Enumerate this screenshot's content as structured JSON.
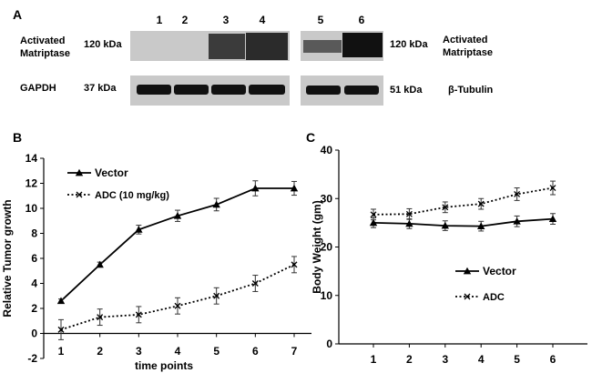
{
  "panel_a": {
    "label": "A",
    "lane_numbers": [
      "1",
      "2",
      "3",
      "4",
      "5",
      "6"
    ],
    "row1_label_left": [
      "Activated",
      "Matriptase"
    ],
    "row1_kda_left": "120 kDa",
    "row1_kda_right": "120 kDa",
    "row1_label_right": [
      "Activated",
      "Matriptase"
    ],
    "row2_label_left": "GAPDH",
    "row2_kda_left": "37 kDa",
    "row2_kda_right": "51 kDa",
    "row2_label_right": "β-Tubulin",
    "colors": {
      "blot_bg": "#c6c6c6",
      "band": "#111111"
    }
  },
  "chart_data": [
    {
      "panel": "B",
      "type": "line",
      "title": "",
      "xlabel": "time points",
      "ylabel": "Relative Tumor growth",
      "x": [
        1,
        2,
        3,
        4,
        5,
        6,
        7
      ],
      "x_ticks": [
        "1",
        "2",
        "3",
        "4",
        "5",
        "6",
        "7"
      ],
      "ylim": [
        -2,
        14
      ],
      "y_ticks": [
        "-2",
        "0",
        "2",
        "4",
        "6",
        "8",
        "10",
        "12",
        "14"
      ],
      "series": [
        {
          "name": "Vector",
          "marker": "triangle",
          "line": "solid",
          "values": [
            2.6,
            5.5,
            8.3,
            9.4,
            10.3,
            11.6,
            11.6
          ],
          "errors": [
            0.15,
            0.2,
            0.35,
            0.45,
            0.5,
            0.6,
            0.55
          ]
        },
        {
          "name": "ADC (10 mg/kg)",
          "marker": "x",
          "line": "dotted",
          "values": [
            0.3,
            1.3,
            1.5,
            2.2,
            3.0,
            4.0,
            5.5
          ],
          "errors": [
            0.8,
            0.65,
            0.65,
            0.65,
            0.65,
            0.65,
            0.65
          ]
        }
      ],
      "legend": "top-left"
    },
    {
      "panel": "C",
      "type": "line",
      "title": "",
      "xlabel": "",
      "ylabel": "Body Weight (gm)",
      "x": [
        1,
        2,
        3,
        4,
        5,
        6
      ],
      "x_ticks": [
        "1",
        "2",
        "3",
        "4",
        "5",
        "6"
      ],
      "ylim": [
        0,
        40
      ],
      "y_ticks": [
        "0",
        "10",
        "20",
        "30",
        "40"
      ],
      "series": [
        {
          "name": "Vector",
          "marker": "triangle",
          "line": "solid",
          "values": [
            25.0,
            24.8,
            24.4,
            24.3,
            25.3,
            25.8
          ],
          "errors": [
            1.0,
            1.0,
            1.0,
            1.0,
            1.1,
            1.1
          ]
        },
        {
          "name": "ADC",
          "marker": "x",
          "line": "dotted",
          "values": [
            26.7,
            26.8,
            28.2,
            28.9,
            30.9,
            32.2
          ],
          "errors": [
            1.1,
            1.1,
            1.1,
            1.1,
            1.3,
            1.4
          ]
        }
      ],
      "legend": "center-right"
    }
  ]
}
